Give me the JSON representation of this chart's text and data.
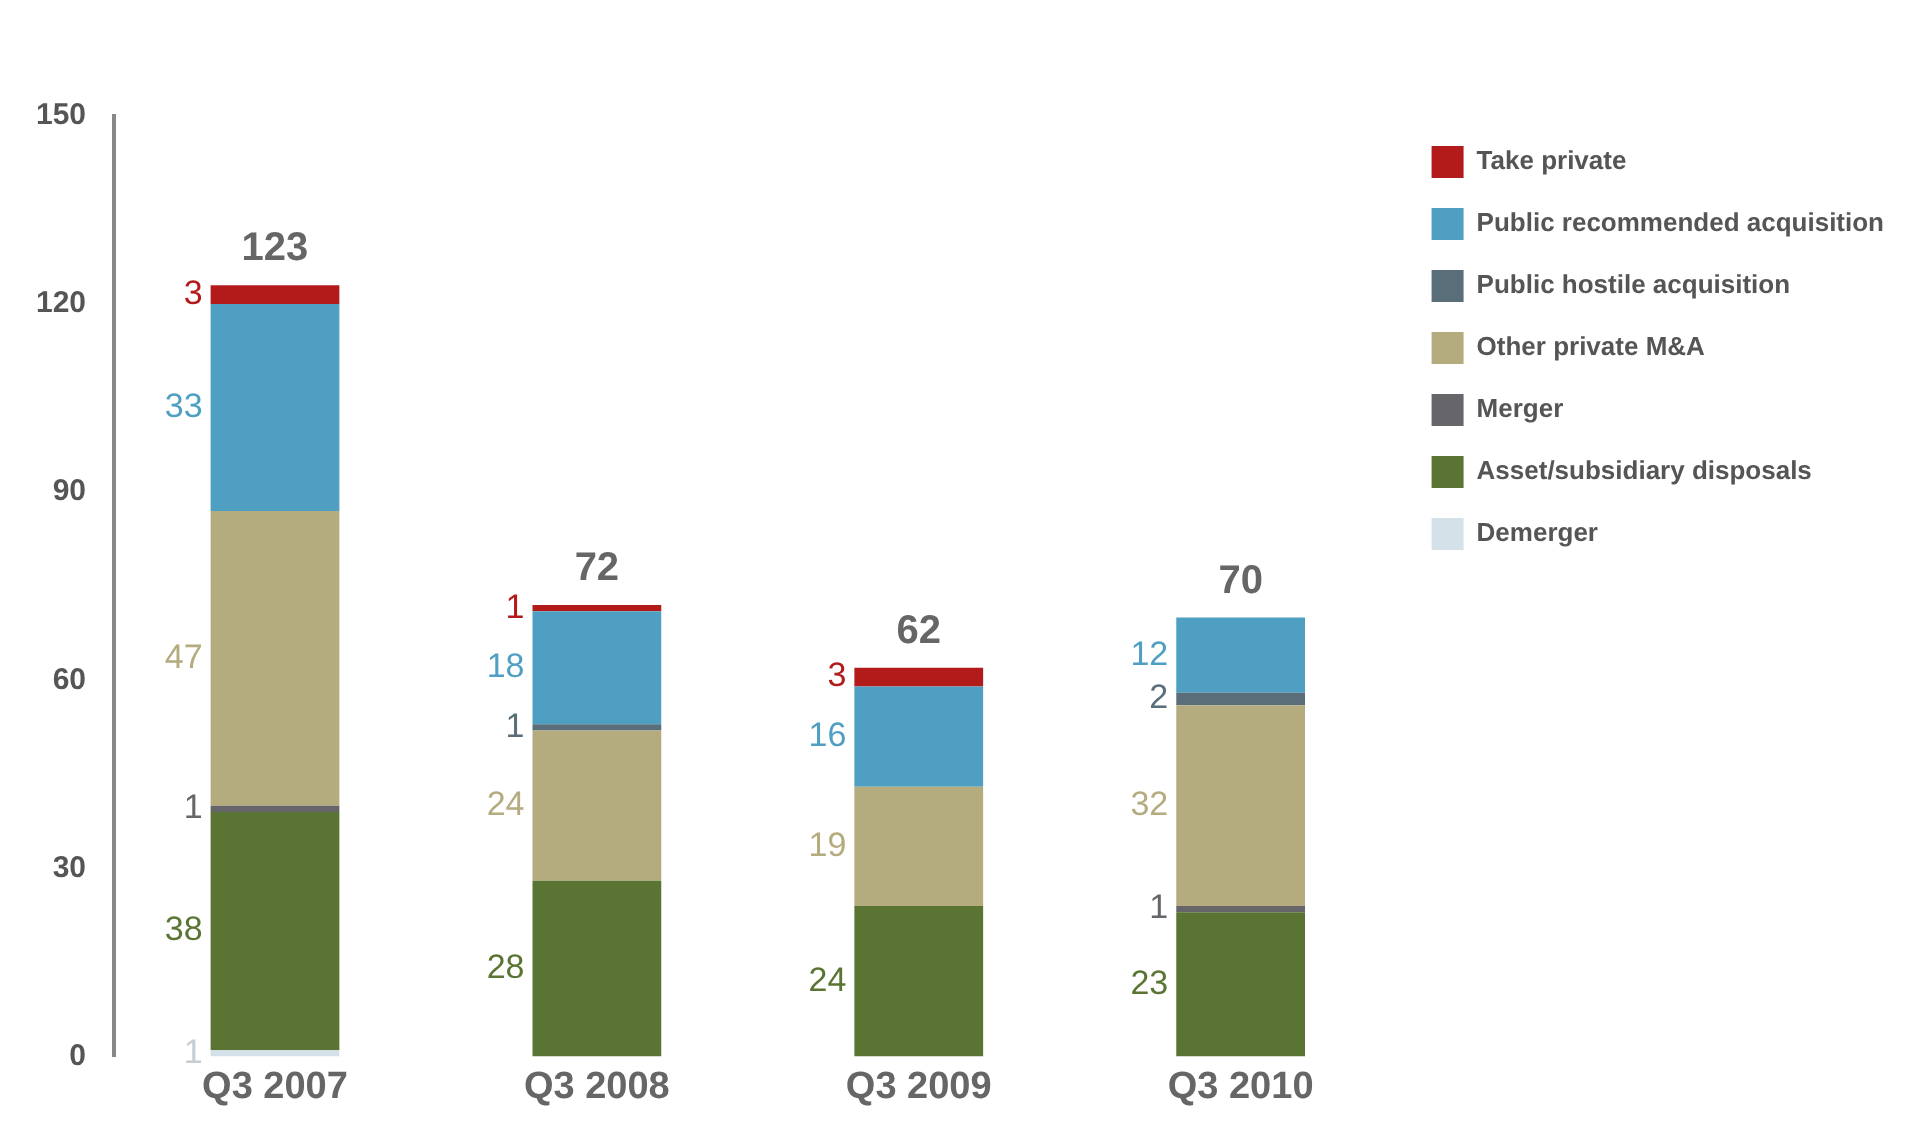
{
  "chart_data": {
    "type": "bar",
    "stacked": true,
    "categories": [
      "Q3 2007",
      "Q3 2008",
      "Q3 2009",
      "Q3 2010"
    ],
    "series": [
      {
        "name": "Demerger",
        "color": "#d4e1e8",
        "values": [
          1,
          null,
          null,
          null
        ]
      },
      {
        "name": "Asset/subsidiary disposals",
        "color": "#5a7533",
        "values": [
          38,
          28,
          24,
          23
        ]
      },
      {
        "name": "Merger",
        "color": "#66666a",
        "values": [
          1,
          null,
          null,
          1
        ]
      },
      {
        "name": "Other private M&A",
        "color": "#b4ab7f",
        "values": [
          47,
          24,
          19,
          32
        ]
      },
      {
        "name": "Public hostile acquisition",
        "color": "#5a6e7a",
        "values": [
          null,
          1,
          null,
          2
        ]
      },
      {
        "name": "Public recommended acquisition",
        "color": "#4f9fc2",
        "values": [
          33,
          18,
          16,
          12
        ]
      },
      {
        "name": "Take private",
        "color": "#b31b1b",
        "values": [
          3,
          1,
          3,
          null
        ]
      }
    ],
    "ylim": [
      0,
      150
    ],
    "yticks": [
      0,
      30,
      60,
      90,
      120,
      150
    ],
    "grid": false,
    "legend": "top right",
    "data_labels": true,
    "totals": [
      "123",
      "72",
      "62",
      "70"
    ]
  }
}
